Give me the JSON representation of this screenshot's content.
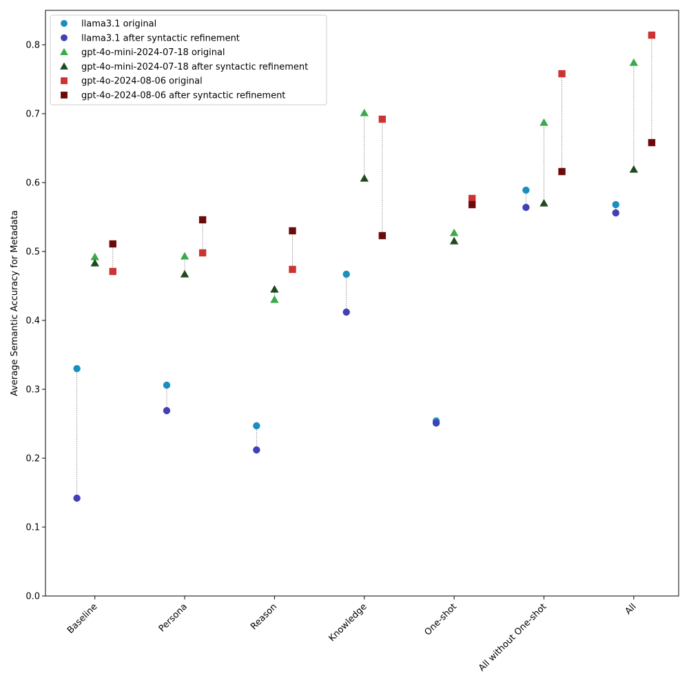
{
  "chart_data": {
    "type": "scatter",
    "title": "",
    "xlabel": "",
    "ylabel": "Average Semantic Accuracy for Metadata",
    "ylim": [
      0,
      0.85
    ],
    "yticks": [
      "0.0",
      "0.1",
      "0.2",
      "0.3",
      "0.4",
      "0.5",
      "0.6",
      "0.7",
      "0.8"
    ],
    "grid": false,
    "legend_position": "top-left",
    "categories": [
      "Baseline",
      "Persona",
      "Reason",
      "Knowledge",
      "One-shot",
      "All without One-shot",
      "All"
    ],
    "series": [
      {
        "name": "llama3.1 original",
        "color": "#1a8fbf",
        "marker": "circle",
        "offset": -0.2,
        "values": [
          0.33,
          0.306,
          0.247,
          0.467,
          0.254,
          0.589,
          0.568
        ]
      },
      {
        "name": "llama3.1 after syntactic refinement",
        "color": "#4040b8",
        "marker": "circle",
        "offset": -0.2,
        "values": [
          0.142,
          0.269,
          0.212,
          0.412,
          0.251,
          0.564,
          0.556
        ]
      },
      {
        "name": "gpt-4o-mini-2024-07-18 original",
        "color": "#3aaa4a",
        "marker": "triangle",
        "offset": 0,
        "values": [
          0.492,
          0.493,
          0.43,
          0.701,
          0.527,
          0.687,
          0.774
        ]
      },
      {
        "name": "gpt-4o-mini-2024-07-18 after syntactic refinement",
        "color": "#1f4a20",
        "marker": "triangle",
        "offset": 0,
        "values": [
          0.483,
          0.467,
          0.445,
          0.606,
          0.515,
          0.57,
          0.619
        ]
      },
      {
        "name": "gpt-4o-2024-08-06 original",
        "color": "#cc3333",
        "marker": "square",
        "offset": 0.2,
        "values": [
          0.471,
          0.498,
          0.474,
          0.692,
          0.577,
          0.758,
          0.814
        ]
      },
      {
        "name": "gpt-4o-2024-08-06 after syntactic refinement",
        "color": "#6b0a0a",
        "marker": "square",
        "offset": 0.2,
        "values": [
          0.511,
          0.546,
          0.53,
          0.523,
          0.568,
          0.616,
          0.658
        ]
      }
    ],
    "pairs": [
      [
        0,
        1
      ],
      [
        2,
        3
      ],
      [
        4,
        5
      ]
    ]
  }
}
